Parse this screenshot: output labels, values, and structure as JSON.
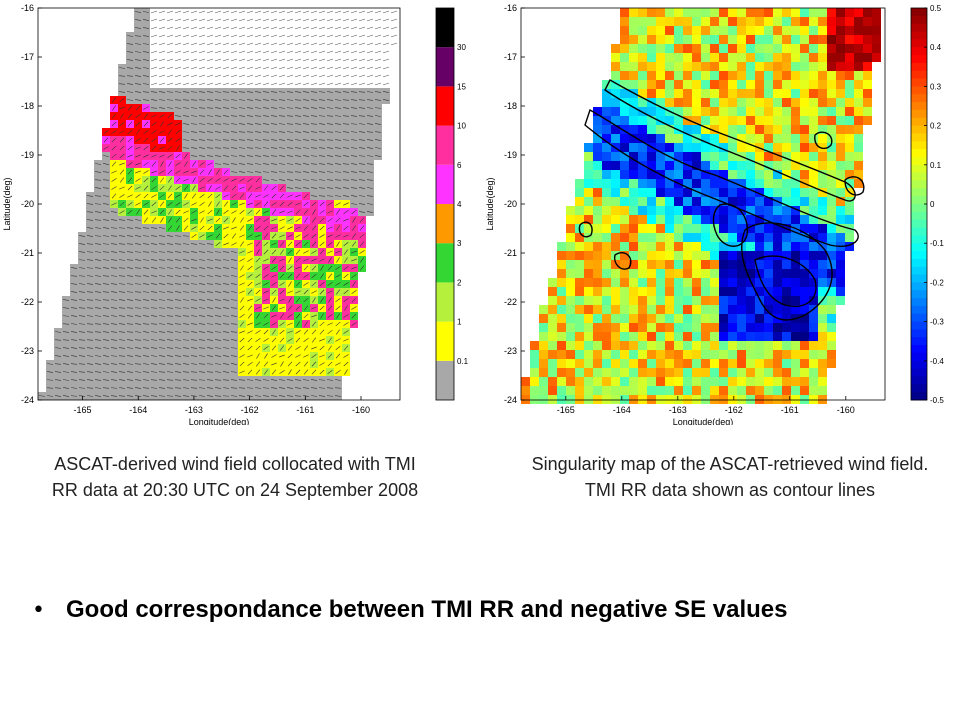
{
  "chart_data": [
    {
      "type": "heatmap",
      "subtype": "wind-vector-field",
      "xlabel": "Longitude(deg)",
      "ylabel": "Latitude(deg)",
      "xlim": [
        -165.8,
        -159.3
      ],
      "ylim": [
        -24,
        -16
      ],
      "xticks": [
        -165,
        -164,
        -163,
        -162,
        -161,
        -160
      ],
      "yticks": [
        -16,
        -17,
        -18,
        -19,
        -20,
        -21,
        -22,
        -23,
        -24
      ],
      "colorbar": {
        "levels": [
          "0.1",
          "1",
          "2",
          "3",
          "4",
          "6",
          "10",
          "15",
          "30"
        ],
        "colors": [
          "#a8a8a8",
          "#ffff00",
          "#b4f03c",
          "#33d633",
          "#ff9900",
          "#ff33ff",
          "#ff2fa0",
          "#ff0000",
          "#660066",
          "#000000"
        ]
      },
      "regions": [
        {
          "name": "no-rain",
          "color": "#a8a8a8"
        },
        {
          "name": "rain-band",
          "color": "#ff2fa0"
        }
      ]
    },
    {
      "type": "heatmap",
      "subtype": "singularity-map-with-contours",
      "xlabel": "Longitude(deg)",
      "ylabel": "Latitude(deg)",
      "xlim": [
        -165.8,
        -159.3
      ],
      "ylim": [
        -24,
        -16
      ],
      "xticks": [
        -165,
        -164,
        -163,
        -162,
        -161,
        -160
      ],
      "yticks": [
        -16,
        -17,
        -18,
        -19,
        -20,
        -21,
        -22,
        -23,
        -24
      ],
      "colorbar": {
        "range": [
          -0.5,
          0.5
        ],
        "ticks": [
          "0.5",
          "0.4",
          "0.3",
          "0.2",
          "0.1",
          "0",
          "-0.1",
          "-0.2",
          "-0.3",
          "-0.4",
          "-0.5"
        ],
        "colormap": "jet"
      },
      "contour_color": "#000000"
    }
  ],
  "captions": {
    "left": "ASCAT-derived wind field collocated with TMI RR data at 20:30 UTC on 24 September 2008",
    "right": "Singularity map of the ASCAT-retrieved wind field. TMI RR data shown as contour lines"
  },
  "bullet": {
    "text": "Good correspondance between TMI RR and negative SE values"
  }
}
